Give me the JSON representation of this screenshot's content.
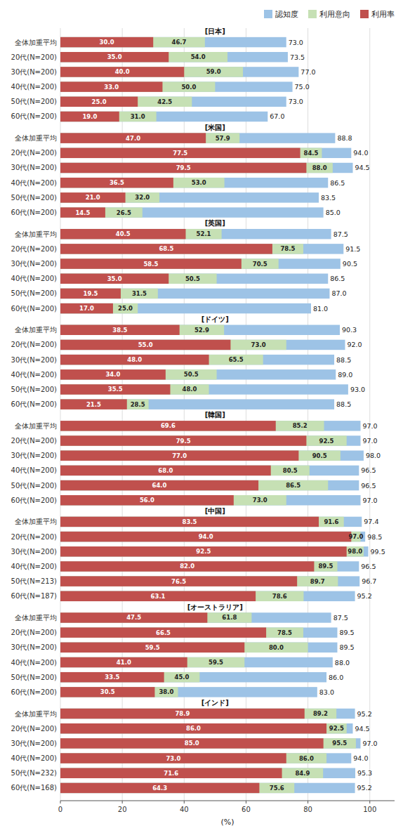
{
  "chart_data": {
    "type": "bar",
    "orientation": "horizontal",
    "stacked": false,
    "data_labels": true,
    "grid": true,
    "legend": "upper right",
    "x_label": "(%)",
    "xlim": [
      0,
      108
    ],
    "xticks": [
      0,
      20,
      40,
      60,
      80,
      100
    ],
    "categories": [
      "全体加重平均",
      "20代(N=200)",
      "30代(N=200)",
      "40代(N=200)",
      "50代(N=200)",
      "60代(N=200)",
      "全体加重平均",
      "20代(N=200)",
      "30代(N=200)",
      "40代(N=200)",
      "50代(N=200)",
      "60代(N=200)",
      "全体加重平均",
      "20代(N=200)",
      "30代(N=200)",
      "40代(N=200)",
      "50代(N=200)",
      "60代(N=200)",
      "全体加重平均",
      "20代(N=200)",
      "30代(N=200)",
      "40代(N=200)",
      "50代(N=200)",
      "60代(N=200)",
      "全体加重平均",
      "20代(N=200)",
      "30代(N=200)",
      "40代(N=200)",
      "50代(N=200)",
      "60代(N=200)",
      "全体加重平均",
      "20代(N=200)",
      "30代(N=200)",
      "40代(N=200)",
      "50代(N=213)",
      "60代(N=187)",
      "全体加重平均",
      "20代(N=200)",
      "30代(N=200)",
      "40代(N=200)",
      "50代(N=200)",
      "60代(N=200)",
      "全体加重平均",
      "20代(N=200)",
      "30代(N=200)",
      "40代(N=200)",
      "50代(N=232)",
      "60代(N=168)"
    ],
    "annotations": [
      {
        "text": "[日本]",
        "x": 50,
        "category_index": 0
      },
      {
        "text": "[米国]",
        "x": 50,
        "category_index": 6
      },
      {
        "text": "[英国]",
        "x": 50,
        "category_index": 12
      },
      {
        "text": "[ドイツ]",
        "x": 50,
        "category_index": 18
      },
      {
        "text": "[韓国]",
        "x": 50,
        "category_index": 24
      },
      {
        "text": "[中国]",
        "x": 50,
        "category_index": 30
      },
      {
        "text": "[オーストラリア]",
        "x": 50,
        "category_index": 36
      },
      {
        "text": "[インド]",
        "x": 50,
        "category_index": 42
      }
    ],
    "series": [
      {
        "name": "認知度",
        "color": "#9DC3E6",
        "values": [
          73.0,
          73.5,
          77.0,
          75.0,
          73.0,
          67.0,
          88.8,
          94.0,
          94.5,
          86.5,
          83.5,
          85.0,
          87.5,
          91.5,
          90.5,
          86.5,
          87.0,
          81.0,
          90.3,
          92.0,
          88.5,
          89.0,
          93.0,
          88.5,
          97.0,
          97.0,
          98.0,
          96.5,
          96.5,
          97.0,
          97.4,
          98.5,
          99.5,
          96.5,
          96.7,
          95.2,
          87.5,
          89.5,
          89.5,
          88.0,
          86.0,
          83.0,
          95.2,
          94.5,
          97.0,
          94.0,
          95.3,
          95.2
        ],
        "value_labels": [
          "73.0",
          "73.5",
          "77.0",
          "75.0",
          "73.0",
          "67.0",
          "88.8",
          "94.0",
          "94.5",
          "86.5",
          "83.5",
          "85.0",
          "87.5",
          "91.5",
          "90.5",
          "86.5",
          "87.0",
          "81.0",
          "90.3",
          "92.0",
          "88.5",
          "89.0",
          "93.0",
          "88.5",
          "97.0",
          "97.0",
          "98.0",
          "96.5",
          "96.5",
          "97.0",
          "97.4",
          "98.5",
          "99.5",
          "96.5",
          "96.7",
          "95.2",
          "87.5",
          "89.5",
          "89.5",
          "88.0",
          "86.0",
          "83.0",
          "95.2",
          "94.5",
          "97.0",
          "94.0",
          "95.3",
          "95.2"
        ]
      },
      {
        "name": "利用意向",
        "color": "#C6E0B4",
        "values": [
          46.7,
          54.0,
          59.0,
          50.0,
          42.5,
          31.0,
          57.9,
          84.5,
          88.0,
          53.0,
          32.0,
          26.5,
          52.1,
          78.5,
          70.5,
          50.5,
          31.5,
          25.0,
          52.9,
          73.0,
          65.5,
          50.5,
          48.0,
          28.5,
          85.2,
          92.5,
          90.5,
          80.5,
          86.5,
          73.0,
          91.6,
          97.0,
          98.0,
          89.5,
          89.7,
          78.6,
          61.8,
          78.5,
          80.0,
          59.5,
          45.0,
          38.0,
          89.2,
          92.5,
          95.5,
          86.0,
          84.9,
          75.6
        ],
        "value_labels": [
          "46.7",
          "54.0",
          "59.0",
          "50.0",
          "42.5",
          "31.0",
          "57.9",
          "84.5",
          "88.0",
          "53.0",
          "32.0",
          "26.5",
          "52.1",
          "78.5",
          "70.5",
          "50.5",
          "31.5",
          "25.0",
          "52.9",
          "73.0",
          "65.5",
          "50.5",
          "48.0",
          "28.5",
          "85.2",
          "92.5",
          "90.5",
          "80.5",
          "86.5",
          "73.0",
          "91.6",
          "97.0",
          "98.0",
          "89.5",
          "89.7",
          "78.6",
          "61.8",
          "78.5",
          "80.0",
          "59.5",
          "45.0",
          "38.0",
          "89.2",
          "92.5",
          "95.5",
          "86.0",
          "84.9",
          "75.6"
        ]
      },
      {
        "name": "利用率",
        "color": "#C0504D",
        "values": [
          30.0,
          35.0,
          40.0,
          33.0,
          25.0,
          19.0,
          47.0,
          77.5,
          79.5,
          36.5,
          21.0,
          14.5,
          40.5,
          68.5,
          58.5,
          35.0,
          19.5,
          17.0,
          38.5,
          55.0,
          48.0,
          34.0,
          35.5,
          21.5,
          69.6,
          79.5,
          77.0,
          68.0,
          64.0,
          56.0,
          83.5,
          94.0,
          92.5,
          82.0,
          76.5,
          63.1,
          47.5,
          66.5,
          59.5,
          41.0,
          33.5,
          30.5,
          78.9,
          86.0,
          85.0,
          73.0,
          71.6,
          64.3
        ],
        "value_labels": [
          "30.0",
          "35.0",
          "40.0",
          "33.0",
          "25.0",
          "19.0",
          "47.0",
          "77.5",
          "79.5",
          "36.5",
          "21.0",
          "14.5",
          "40.5",
          "68.5",
          "58.5",
          "35.0",
          "19.5",
          "17.0",
          "38.5",
          "55.0",
          "48.0",
          "34.0",
          "35.5",
          "21.5",
          "69.6",
          "79.5",
          "77.0",
          "68.0",
          "64.0",
          "56.0",
          "83.5",
          "94.0",
          "92.5",
          "82.0",
          "76.5",
          "63.1",
          "47.5",
          "66.5",
          "59.5",
          "41.0",
          "33.5",
          "30.5",
          "78.9",
          "86.0",
          "85.0",
          "73.0",
          "71.6",
          "64.3"
        ]
      }
    ]
  }
}
